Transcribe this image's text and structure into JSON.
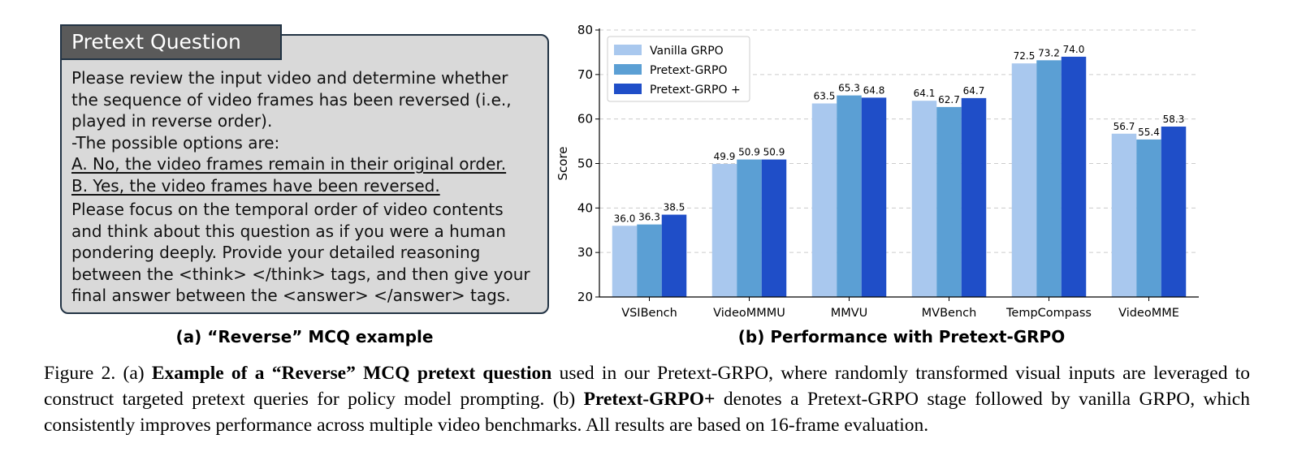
{
  "panel_a": {
    "title": "Pretext Question",
    "lines": [
      "Please review the input video and determine whether",
      "the sequence of video frames has been reversed (i.e.,",
      "played in reverse order).",
      "-The possible options are:"
    ],
    "options": [
      "A. No, the video frames remain in their original order.",
      "B. Yes, the video frames have been reversed."
    ],
    "instructions": [
      "Please focus on the temporal order of video contents",
      "and think about this question as if you were a human",
      "pondering deeply. Provide your detailed reasoning",
      "between the <think> </think> tags, and then give your",
      "final answer between the <answer> </answer> tags."
    ],
    "caption": "(a) “Reverse” MCQ example"
  },
  "panel_b": {
    "caption": "(b) Performance with Pretext-GRPO"
  },
  "chart_data": {
    "type": "bar",
    "categories": [
      "VSIBench",
      "VideoMMMU",
      "MMVU",
      "MVBench",
      "TempCompass",
      "VideoMME"
    ],
    "series": [
      {
        "name": "Vanilla GRPO",
        "values": [
          36.0,
          49.9,
          63.5,
          64.1,
          72.5,
          56.7
        ],
        "color": "#a9c8ee"
      },
      {
        "name": "Pretext-GRPO",
        "values": [
          36.3,
          50.9,
          65.3,
          62.7,
          73.2,
          55.4
        ],
        "color": "#5b9fd4"
      },
      {
        "name": "Pretext-GRPO +",
        "values": [
          38.5,
          50.9,
          64.8,
          64.7,
          74.0,
          58.3
        ],
        "color": "#1f4ec8"
      }
    ],
    "xlabel": "",
    "ylabel": "Score",
    "ylim": [
      20,
      80
    ],
    "yticks": [
      20,
      30,
      40,
      50,
      60,
      70,
      80
    ],
    "grid": true,
    "legend": "top-left"
  },
  "figure_caption": {
    "label": "Figure 2.",
    "a_prefix": "(a)",
    "a_bold": "Example of a “Reverse” MCQ pretext question",
    "a_rest": "used in our Pretext-GRPO, where randomly transformed visual inputs are leveraged to construct targeted pretext queries for policy model prompting.",
    "b_prefix": "(b)",
    "b_bold": "Pretext-GRPO+",
    "b_rest": "denotes a Pretext-GRPO stage followed by vanilla GRPO, which consistently improves performance across multiple video benchmarks. All results are based on 16-frame evaluation."
  }
}
